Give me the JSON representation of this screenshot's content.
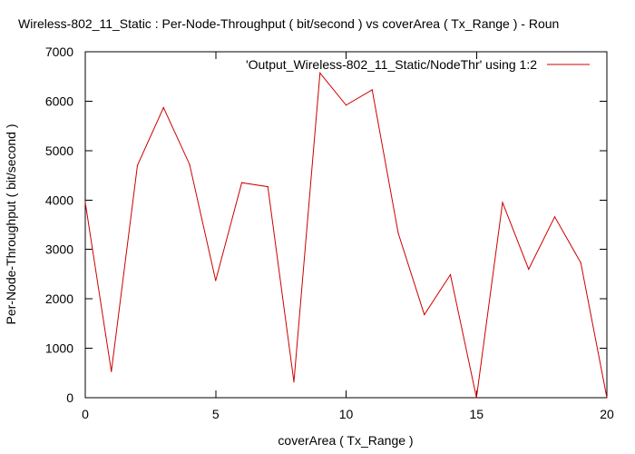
{
  "chart_data": {
    "type": "line",
    "title": "Wireless-802_11_Static : Per-Node-Throughput ( bit/second ) vs coverArea ( Tx_Range ) - Roun",
    "xlabel": "coverArea ( Tx_Range )",
    "ylabel": "Per-Node-Throughput ( bit/second )",
    "xlim": [
      0,
      20
    ],
    "ylim": [
      0,
      7000
    ],
    "xticks": [
      0,
      5,
      10,
      15,
      20
    ],
    "yticks": [
      0,
      1000,
      2000,
      3000,
      4000,
      5000,
      6000,
      7000
    ],
    "grid": false,
    "legend_position": "top-right",
    "series": [
      {
        "name": "'Output_Wireless-802_11_Static/NodeThr' using 1:2",
        "color": "#cc0000",
        "x": [
          0,
          1,
          2,
          3,
          4,
          5,
          6,
          7,
          8,
          9,
          10,
          11,
          12,
          13,
          14,
          15,
          16,
          17,
          18,
          19,
          20
        ],
        "y": [
          3950,
          530,
          4700,
          5870,
          4720,
          2370,
          4350,
          4270,
          320,
          6570,
          5920,
          6230,
          3330,
          1680,
          2490,
          0,
          3950,
          2600,
          3660,
          2730,
          0
        ]
      }
    ]
  }
}
